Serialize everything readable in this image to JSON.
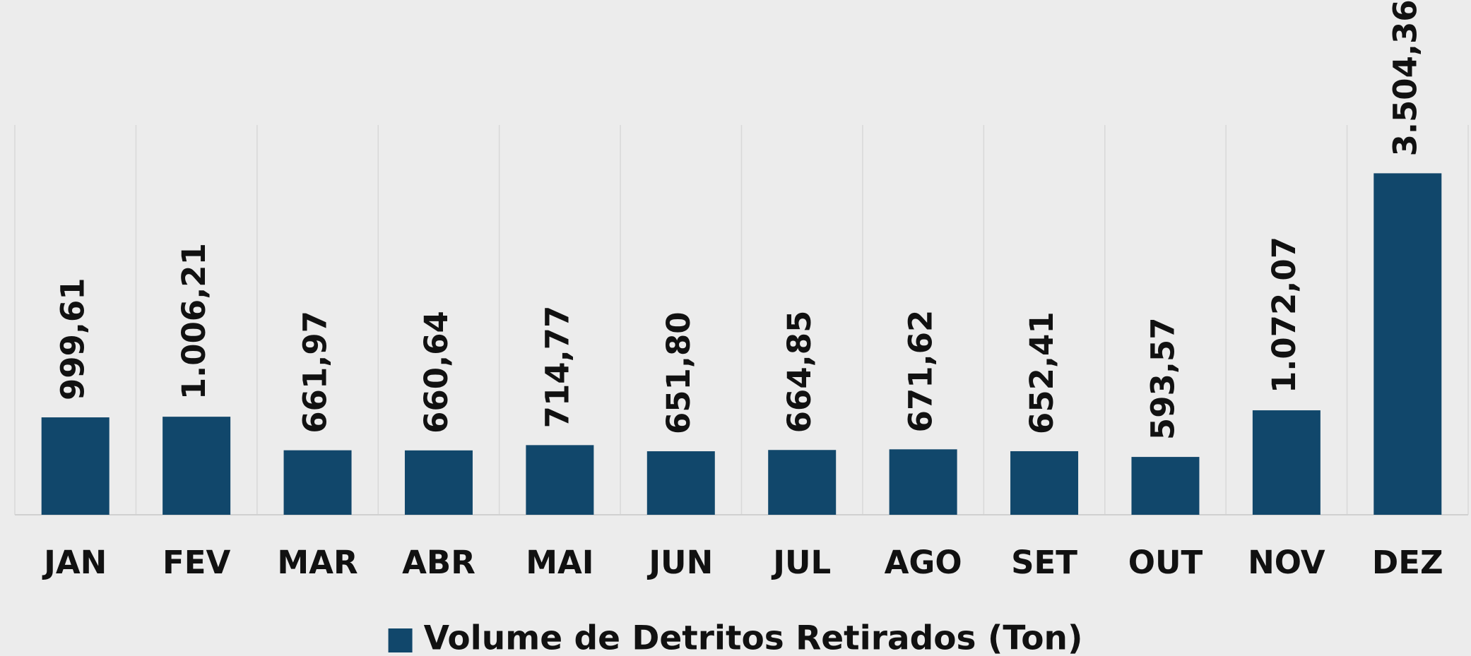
{
  "chart_data": {
    "type": "bar",
    "categories": [
      "JAN",
      "FEV",
      "MAR",
      "ABR",
      "MAI",
      "JUN",
      "JUL",
      "AGO",
      "SET",
      "OUT",
      "NOV",
      "DEZ"
    ],
    "series": [
      {
        "name": "Volume de Detritos Retirados (Ton)",
        "color": "#11476b",
        "values": [
          999.61,
          1006.21,
          661.97,
          660.64,
          714.77,
          651.8,
          664.85,
          671.62,
          652.41,
          593.57,
          1072.07,
          3504.36
        ],
        "value_labels": [
          "999,61",
          "1.006,21",
          "661,97",
          "660,64",
          "714,77",
          "651,80",
          "664,85",
          "671,62",
          "652,41",
          "593,57",
          "1.072,07",
          "3.504,36"
        ]
      }
    ],
    "ylim": [
      0,
      4000
    ],
    "legend": "bottom"
  }
}
